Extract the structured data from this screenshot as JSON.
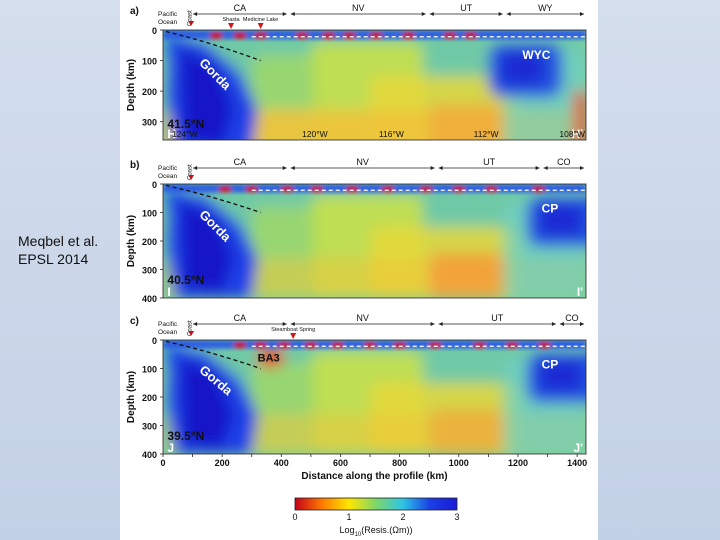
{
  "citation": {
    "line1": "Meqbel et al.",
    "line2": "EPSL 2014"
  },
  "colorbar": {
    "ticks": [
      "0",
      "1",
      "2",
      "3"
    ],
    "label_prefix": "Log",
    "label_sub": "10",
    "label_suffix": "(Resis.(Ωm))",
    "colors": [
      "#c4001a",
      "#ff7a00",
      "#ffe600",
      "#7cd66a",
      "#2ec4e6",
      "#1a3fe6",
      "#1a1ad8"
    ]
  },
  "shared": {
    "ylabel": "Depth (km)",
    "xlabel": "Distance along the profile (km)",
    "xticks": [
      "0",
      "100",
      "200",
      "300",
      "400",
      "500",
      "600",
      "700",
      "800",
      "900",
      "1000",
      "1100",
      "1200",
      "1300",
      "1400"
    ],
    "pacific": "Pacific",
    "ocean": "Ocean",
    "coast": "Coast"
  },
  "panels": [
    {
      "letter": "a)",
      "yticks": [
        "0",
        "100",
        "200",
        "300"
      ],
      "states": [
        {
          "label": "CA",
          "from": 95,
          "to": 425
        },
        {
          "label": "NV",
          "from": 425,
          "to": 895
        },
        {
          "label": "UT",
          "from": 895,
          "to": 1155
        },
        {
          "label": "WY",
          "from": 1155,
          "to": 1430
        }
      ],
      "places": [
        {
          "label": "Shasta",
          "x": 230
        },
        {
          "label": "Medicine Lake",
          "x": 330
        }
      ],
      "lat": "41.5°N",
      "labels": {
        "gorda": "Gorda",
        "block": "WYC"
      },
      "lons": [
        "124°W",
        "120°W",
        "116°W",
        "112°W",
        "108°W"
      ],
      "endLeft": "H",
      "endRight": "H'"
    },
    {
      "letter": "b)",
      "yticks": [
        "0",
        "100",
        "200",
        "300",
        "400"
      ],
      "states": [
        {
          "label": "CA",
          "from": 95,
          "to": 425
        },
        {
          "label": "NV",
          "from": 425,
          "to": 925
        },
        {
          "label": "UT",
          "from": 925,
          "to": 1280
        },
        {
          "label": "CO",
          "from": 1280,
          "to": 1430
        }
      ],
      "places": [],
      "lat": "40.5°N",
      "labels": {
        "gorda": "Gorda",
        "block": "CP"
      },
      "lons": [],
      "endLeft": "I",
      "endRight": "I'"
    },
    {
      "letter": "c)",
      "yticks": [
        "0",
        "100",
        "200",
        "300",
        "400"
      ],
      "states": [
        {
          "label": "CA",
          "from": 95,
          "to": 425
        },
        {
          "label": "NV",
          "from": 425,
          "to": 925
        },
        {
          "label": "UT",
          "from": 925,
          "to": 1335
        },
        {
          "label": "CO",
          "from": 1335,
          "to": 1430
        }
      ],
      "places": [
        {
          "label": "Steamboat Spring",
          "x": 440
        }
      ],
      "lat": "39.5°N",
      "labels": {
        "gorda": "Gorda",
        "block": "CP",
        "anomaly": "BA3"
      },
      "lons": [],
      "endLeft": "J",
      "endRight": "J'"
    }
  ]
}
